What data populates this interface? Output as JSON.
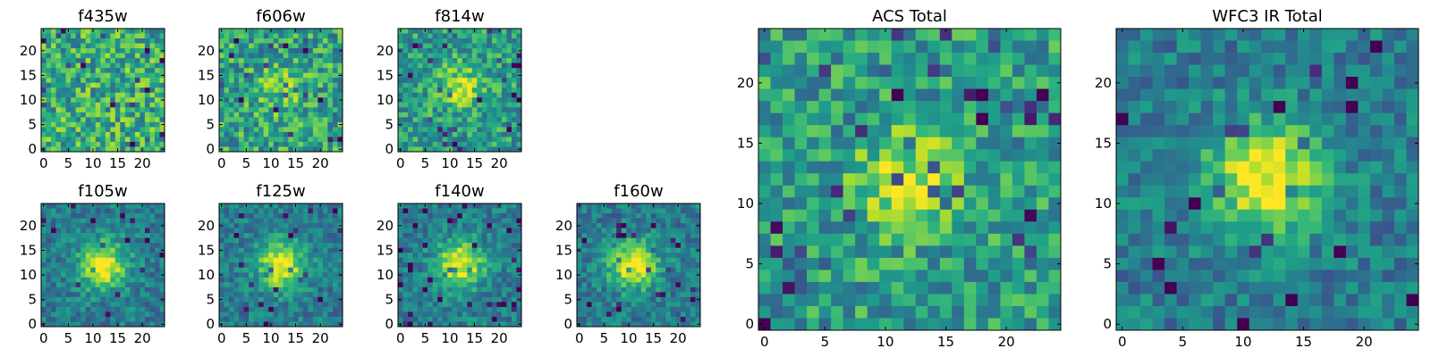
{
  "colormap": "viridis",
  "chart_data": [
    {
      "type": "heatmap",
      "title": "f435w",
      "xlim": [
        0,
        24
      ],
      "ylim": [
        0,
        24
      ],
      "xticks": [
        0,
        5,
        10,
        15,
        20
      ],
      "yticks": [
        0,
        5,
        10,
        15,
        20
      ],
      "center_brightness": "none"
    },
    {
      "type": "heatmap",
      "title": "f606w",
      "xlim": [
        0,
        24
      ],
      "ylim": [
        0,
        24
      ],
      "xticks": [
        0,
        5,
        10,
        15,
        20
      ],
      "yticks": [
        0,
        5,
        10,
        15,
        20
      ],
      "center_brightness": "faint"
    },
    {
      "type": "heatmap",
      "title": "f814w",
      "xlim": [
        0,
        24
      ],
      "ylim": [
        0,
        24
      ],
      "xticks": [
        0,
        5,
        10,
        15,
        20
      ],
      "yticks": [
        0,
        5,
        10,
        15,
        20
      ],
      "center_brightness": "moderate"
    },
    {
      "type": "heatmap",
      "title": "f105w",
      "xlim": [
        0,
        24
      ],
      "ylim": [
        0,
        24
      ],
      "xticks": [
        0,
        5,
        10,
        15,
        20
      ],
      "yticks": [
        0,
        5,
        10,
        15,
        20
      ],
      "center_brightness": "bright"
    },
    {
      "type": "heatmap",
      "title": "f125w",
      "xlim": [
        0,
        24
      ],
      "ylim": [
        0,
        24
      ],
      "xticks": [
        0,
        5,
        10,
        15,
        20
      ],
      "yticks": [
        0,
        5,
        10,
        15,
        20
      ],
      "center_brightness": "bright"
    },
    {
      "type": "heatmap",
      "title": "f140w",
      "xlim": [
        0,
        24
      ],
      "ylim": [
        0,
        24
      ],
      "xticks": [
        0,
        5,
        10,
        15,
        20
      ],
      "yticks": [
        0,
        5,
        10,
        15,
        20
      ],
      "center_brightness": "bright"
    },
    {
      "type": "heatmap",
      "title": "f160w",
      "xlim": [
        0,
        24
      ],
      "ylim": [
        0,
        24
      ],
      "xticks": [
        0,
        5,
        10,
        15,
        20
      ],
      "yticks": [
        0,
        5,
        10,
        15,
        20
      ],
      "center_brightness": "bright"
    },
    {
      "type": "heatmap",
      "title": "ACS Total",
      "xlim": [
        0,
        24
      ],
      "ylim": [
        0,
        24
      ],
      "xticks": [
        0,
        5,
        10,
        15,
        20
      ],
      "yticks": [
        0,
        5,
        10,
        15,
        20
      ],
      "center_brightness": "moderate"
    },
    {
      "type": "heatmap",
      "title": "WFC3 IR Total",
      "xlim": [
        0,
        24
      ],
      "ylim": [
        0,
        24
      ],
      "xticks": [
        0,
        5,
        10,
        15,
        20
      ],
      "yticks": [
        0,
        5,
        10,
        15,
        20
      ],
      "center_brightness": "bright"
    }
  ]
}
